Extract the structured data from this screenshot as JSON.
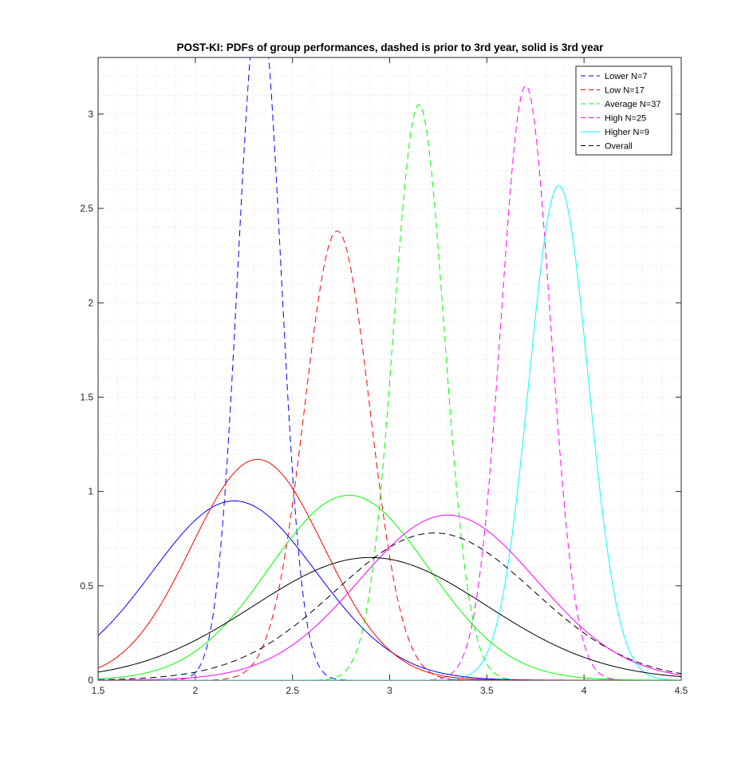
{
  "chart_data": {
    "type": "line",
    "title": "POST-KI: PDFs of group performances, dashed is prior to 3rd year, solid is 3rd year",
    "xlabel": "",
    "ylabel": "",
    "xlim": [
      1.5,
      4.5
    ],
    "ylim": [
      0,
      3.3
    ],
    "x_ticks": [
      "1.5",
      "2",
      "2.5",
      "3",
      "3.5",
      "4",
      "4.5"
    ],
    "y_ticks": [
      "0",
      "0.5",
      "1",
      "1.5",
      "2",
      "2.5",
      "3"
    ],
    "grid": "minor dotted",
    "legend_position": "top-right",
    "series": [
      {
        "name": "Lower N=7",
        "legend": true,
        "style": "dashed",
        "color": "#0000ff",
        "distribution": "normal",
        "mean": 2.33,
        "sd": 0.11,
        "peak": 3.63
      },
      {
        "name": "Low N=17",
        "legend": true,
        "style": "dashed",
        "color": "#ff0000",
        "distribution": "normal",
        "mean": 2.73,
        "sd": 0.168,
        "peak": 2.38
      },
      {
        "name": "Average N=37",
        "legend": true,
        "style": "dashed",
        "color": "#00ff00",
        "distribution": "normal",
        "mean": 3.15,
        "sd": 0.131,
        "peak": 3.05
      },
      {
        "name": "High N=25",
        "legend": true,
        "style": "dashed",
        "color": "#ff00ff",
        "distribution": "normal",
        "mean": 3.7,
        "sd": 0.127,
        "peak": 3.15
      },
      {
        "name": "Higher N=9",
        "legend": true,
        "style": "solid",
        "color": "#00ffff",
        "distribution": "normal",
        "mean": 3.87,
        "sd": 0.153,
        "peak": 2.62
      },
      {
        "name": "Overall",
        "legend": true,
        "style": "dashed",
        "color": "#000000",
        "distribution": "normal",
        "mean": 3.23,
        "sd": 0.51,
        "peak": 0.78
      },
      {
        "legend": false,
        "style": "solid",
        "color": "#0000ff",
        "distribution": "normal",
        "mean": 2.2,
        "sd": 0.42,
        "peak": 0.95
      },
      {
        "legend": false,
        "style": "solid",
        "color": "#ff0000",
        "distribution": "normal",
        "mean": 2.32,
        "sd": 0.34,
        "peak": 1.17
      },
      {
        "legend": false,
        "style": "solid",
        "color": "#00ff00",
        "distribution": "normal",
        "mean": 2.79,
        "sd": 0.41,
        "peak": 0.98
      },
      {
        "legend": false,
        "style": "solid",
        "color": "#ff00ff",
        "distribution": "normal",
        "mean": 3.3,
        "sd": 0.455,
        "peak": 0.875
      },
      {
        "legend": false,
        "style": "solid",
        "color": "#000000",
        "distribution": "normal",
        "mean": 2.9,
        "sd": 0.6,
        "peak": 0.65
      }
    ]
  }
}
